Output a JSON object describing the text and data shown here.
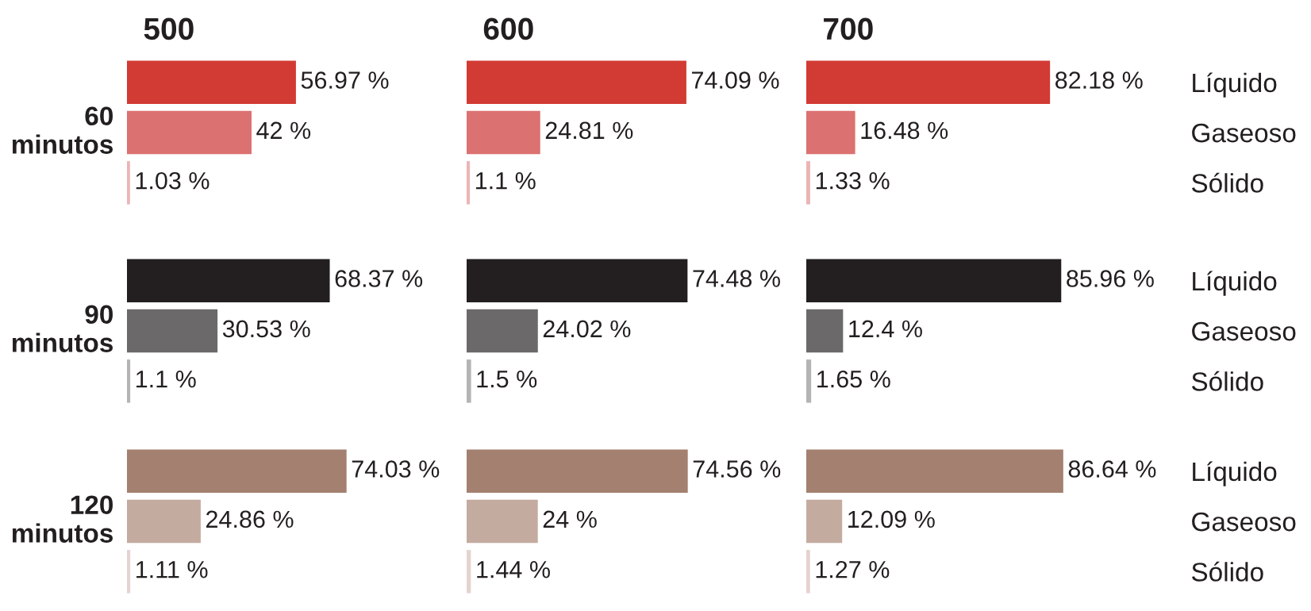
{
  "chart_data": [
    {
      "type": "bar",
      "orientation": "horizontal",
      "title": "500",
      "ylabel": "60\nminutos",
      "categories": [
        null,
        null,
        null
      ],
      "values": [
        56.97,
        42,
        1.03
      ],
      "value_labels": [
        "56.97 %",
        "42 %",
        "1.03 %"
      ],
      "colors": [
        "#d23a34",
        "#db7170",
        "#ecb5b5"
      ],
      "tick_labels": false
    },
    {
      "type": "bar",
      "orientation": "horizontal",
      "title": "600",
      "categories": [
        null,
        null,
        null
      ],
      "values": [
        74.09,
        24.81,
        1.1
      ],
      "value_labels": [
        "74.09 %",
        "24.81 %",
        "1.1 %"
      ],
      "colors": [
        "#d23a34",
        "#db7170",
        "#ecb5b5"
      ],
      "tick_labels": false
    },
    {
      "type": "bar",
      "orientation": "horizontal",
      "title": "700",
      "categories": [
        "Líquido",
        "Gaseoso",
        "Sólido"
      ],
      "values": [
        82.18,
        16.48,
        1.33
      ],
      "value_labels": [
        "82.18 %",
        "16.48 %",
        "1.33 %"
      ],
      "colors": [
        "#d23a34",
        "#db7170",
        "#ecb5b5"
      ],
      "tick_labels": "y"
    },
    {
      "type": "bar",
      "orientation": "horizontal",
      "ylabel": "90\nminutos",
      "categories": [
        null,
        null,
        null
      ],
      "values": [
        68.37,
        30.53,
        1.1
      ],
      "value_labels": [
        "68.37 %",
        "30.53 %",
        "1.1 %"
      ],
      "colors": [
        "#231f20",
        "#6b696a",
        "#b4b4b4"
      ],
      "tick_labels": false
    },
    {
      "type": "bar",
      "orientation": "horizontal",
      "categories": [
        null,
        null,
        null
      ],
      "values": [
        74.48,
        24.02,
        1.5
      ],
      "value_labels": [
        "74.48 %",
        "24.02 %",
        "1.5 %"
      ],
      "colors": [
        "#231f20",
        "#6b696a",
        "#b4b4b4"
      ],
      "tick_labels": false
    },
    {
      "type": "bar",
      "orientation": "horizontal",
      "categories": [
        "Líquido",
        "Gaseoso",
        "Sólido"
      ],
      "values": [
        85.96,
        12.4,
        1.65
      ],
      "value_labels": [
        "85.96 %",
        "12.4 %",
        "1.65 %"
      ],
      "colors": [
        "#231f20",
        "#6b696a",
        "#b4b4b4"
      ],
      "tick_labels": "y"
    },
    {
      "type": "bar",
      "orientation": "horizontal",
      "ylabel": "120\nminutos",
      "categories": [
        null,
        null,
        null
      ],
      "values": [
        74.03,
        24.86,
        1.11
      ],
      "value_labels": [
        "74.03 %",
        "24.86 %",
        "1.11 %"
      ],
      "colors": [
        "#a3806f",
        "#c4aba0",
        "#e5d3cf"
      ],
      "tick_labels": false
    },
    {
      "type": "bar",
      "orientation": "horizontal",
      "categories": [
        null,
        null,
        null
      ],
      "values": [
        74.56,
        24,
        1.44
      ],
      "value_labels": [
        "74.56 %",
        "24 %",
        "1.44 %"
      ],
      "colors": [
        "#a3806f",
        "#c4aba0",
        "#e5d3cf"
      ],
      "tick_labels": false
    },
    {
      "type": "bar",
      "orientation": "horizontal",
      "categories": [
        "Líquido",
        "Gaseoso",
        "Sólido"
      ],
      "values": [
        86.64,
        12.09,
        1.27
      ],
      "value_labels": [
        "86.64 %",
        "12.09 %",
        "1.27 %"
      ],
      "colors": [
        "#a3806f",
        "#c4aba0",
        "#e5d3cf"
      ],
      "tick_labels": "y"
    }
  ]
}
